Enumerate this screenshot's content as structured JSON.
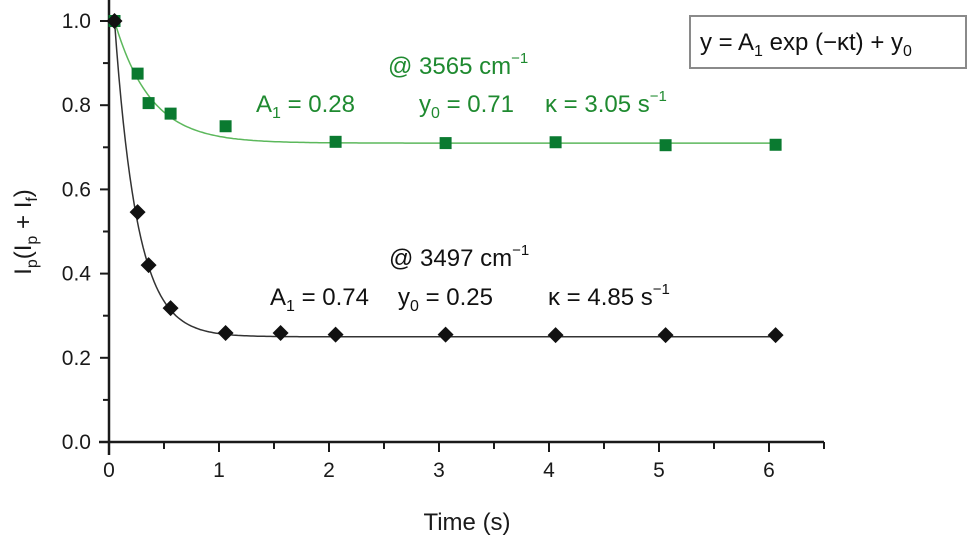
{
  "chart_data": {
    "type": "scatter",
    "title": "",
    "xlabel": "Time (s)",
    "ylabel": "I_p (I_p + I_f)",
    "xlim": [
      0,
      6.5
    ],
    "ylim": [
      0,
      1.0
    ],
    "x_ticks": [
      "0",
      "1",
      "2",
      "3",
      "4",
      "5",
      "6"
    ],
    "y_ticks": [
      "0.0",
      "0.2",
      "0.4",
      "0.6",
      "0.8",
      "1.0"
    ],
    "grid": false,
    "series": [
      {
        "name": "@ 3565 cm-1",
        "color": "#0a7a30",
        "fit_color": "#5cb85c",
        "marker": "square",
        "x": [
          0.05,
          0.26,
          0.36,
          0.56,
          1.06,
          2.06,
          3.06,
          4.06,
          5.06,
          6.06
        ],
        "values": [
          1.0,
          0.875,
          0.805,
          0.78,
          0.75,
          0.713,
          0.71,
          0.712,
          0.705,
          0.706
        ],
        "fit": {
          "A1": 0.28,
          "y0": 0.71,
          "kappa": 3.05
        }
      },
      {
        "name": "@ 3497 cm-1",
        "color": "#111111",
        "fit_color": "#333333",
        "marker": "diamond",
        "x": [
          0.05,
          0.26,
          0.36,
          0.56,
          1.06,
          1.56,
          2.06,
          3.06,
          4.06,
          5.06,
          6.06
        ],
        "values": [
          1.0,
          0.546,
          0.42,
          0.318,
          0.259,
          0.259,
          0.255,
          0.255,
          0.254,
          0.254,
          0.254
        ],
        "fit": {
          "A1": 0.74,
          "y0": 0.25,
          "kappa": 4.85
        }
      }
    ],
    "annotations": [
      "y = A1 exp (-κt) + y0",
      "@ 3565 cm-1",
      "A1 = 0.28   y0 = 0.71  κ = 3.05 s-1",
      "@ 3497 cm-1",
      "A1 = 0.74   y0 = 0.25  κ = 4.85 s-1"
    ]
  },
  "labels": {
    "xlabel": "Time (s)",
    "ylabel_main": "I",
    "ylabel_sub_p": "p",
    "ylabel_paren": "(I",
    "ylabel_plus": " + I",
    "ylabel_sub_f": "f",
    "ylabel_close": ")"
  },
  "equation": {
    "y": "y = A",
    "sub1": "1",
    "mid": " exp (−κt) + y",
    "sub0": "0"
  },
  "green_annot": {
    "wavenumber": "@ 3565 cm",
    "wavenumber_exp": "−1",
    "A": "A",
    "A_sub": "1",
    "A_val": " = 0.28",
    "y": "y",
    "y_sub": "0",
    "y_val": " = 0.71",
    "k": "κ = 3.05 s",
    "k_exp": "−1"
  },
  "black_annot": {
    "wavenumber": "@ 3497 cm",
    "wavenumber_exp": "−1",
    "A": "A",
    "A_sub": "1",
    "A_val": " = 0.74",
    "y": "y",
    "y_sub": "0",
    "y_val": " = 0.25",
    "k": "κ = 4.85 s",
    "k_exp": "−1"
  }
}
